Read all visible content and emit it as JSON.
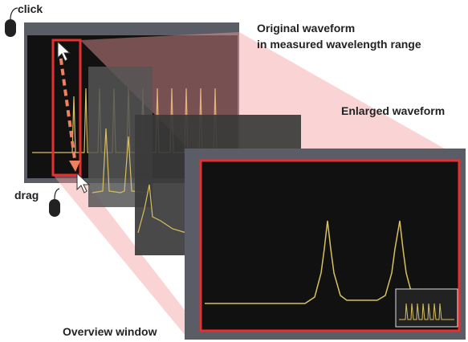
{
  "labels": {
    "click": "click",
    "drag": "drag",
    "original_title": "Original waveform",
    "original_subtitle": "in measured wavelength range",
    "enlarged": "Enlarged waveform",
    "overview": "Overview window"
  }
}
